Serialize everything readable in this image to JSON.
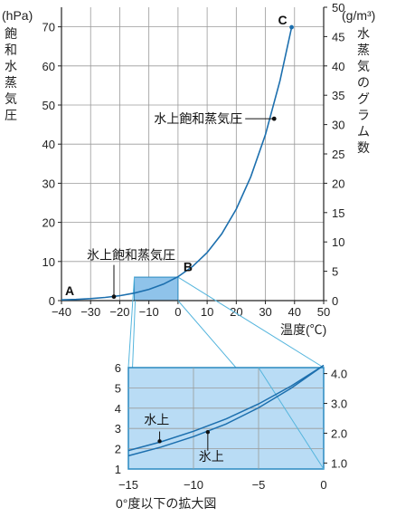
{
  "chart_data": [
    {
      "type": "line",
      "units": {
        "left": "(hPa)",
        "right": "(g/m³)"
      },
      "ylabel_left": [
        "飽",
        "和",
        "水",
        "蒸",
        "気",
        "圧"
      ],
      "ylabel_right": [
        "水",
        "蒸",
        "気",
        "の",
        "グ",
        "ラ",
        "ム",
        "数"
      ],
      "xlabel": "温度(℃)",
      "xlim": [
        -40,
        50
      ],
      "ylim_left": [
        0,
        75
      ],
      "ylim_right": [
        0,
        50
      ],
      "grid": true,
      "x_ticks": [
        "−40",
        "−30",
        "−20",
        "−10",
        "0",
        "10",
        "20",
        "30",
        "40",
        "50"
      ],
      "y_ticks_left": [
        "0",
        "10",
        "20",
        "30",
        "40",
        "50",
        "60",
        "70"
      ],
      "y_ticks_right": [
        "0",
        "5",
        "10",
        "15",
        "20",
        "25",
        "30",
        "35",
        "40",
        "45",
        "50"
      ],
      "series": [
        {
          "x": [
            -40,
            -35,
            -30,
            -25,
            -20,
            -15,
            -10,
            -5,
            0,
            5,
            10,
            15,
            20,
            25,
            30,
            35,
            39
          ],
          "values": [
            0.19,
            0.31,
            0.51,
            0.81,
            1.25,
            1.91,
            2.86,
            4.21,
            6.11,
            8.72,
            12.27,
            17.04,
            23.37,
            31.67,
            42.43,
            56.23,
            69.9
          ]
        }
      ],
      "point_labels": [
        {
          "label": "A",
          "x": -40,
          "y": 0.19
        },
        {
          "label": "B",
          "x": 0,
          "y": 6.11
        },
        {
          "label": "C",
          "x": 39,
          "y": 69.9
        }
      ],
      "annotations": [
        {
          "text": "水上飽和蒸気圧",
          "x": 33,
          "y": 48
        },
        {
          "text": "氷上飽和蒸気圧",
          "x": -22,
          "y": 1
        }
      ],
      "highlight_box": {
        "x": [
          -15,
          0
        ],
        "y": [
          0,
          6
        ]
      }
    },
    {
      "type": "line",
      "caption": "0°度以下の拡大図",
      "xlim": [
        -15,
        0
      ],
      "ylim_left": [
        1,
        6
      ],
      "ylim_right": [
        0.8,
        4.2
      ],
      "grid": true,
      "x_ticks": [
        "−15",
        "−10",
        "−5",
        "0"
      ],
      "y_ticks_left": [
        "1",
        "2",
        "3",
        "4",
        "5",
        "6"
      ],
      "y_ticks_right": [
        "1.0",
        "2.0",
        "3.0",
        "4.0"
      ],
      "series": [
        {
          "name": "水上",
          "x": [
            -15,
            -12.5,
            -10,
            -7.5,
            -5,
            -2.5,
            0
          ],
          "values": [
            1.91,
            2.34,
            2.86,
            3.47,
            4.21,
            5.09,
            6.11
          ]
        },
        {
          "name": "氷上",
          "x": [
            -15,
            -12.5,
            -10,
            -7.5,
            -5,
            -2.5,
            0
          ],
          "values": [
            1.65,
            2.08,
            2.6,
            3.22,
            4.02,
            4.98,
            6.11
          ]
        }
      ],
      "annotations": [
        {
          "text": "水上",
          "x": -12.6,
          "y": 2.4
        },
        {
          "text": "氷上",
          "x": -8.9,
          "y": 2.85
        }
      ]
    }
  ]
}
